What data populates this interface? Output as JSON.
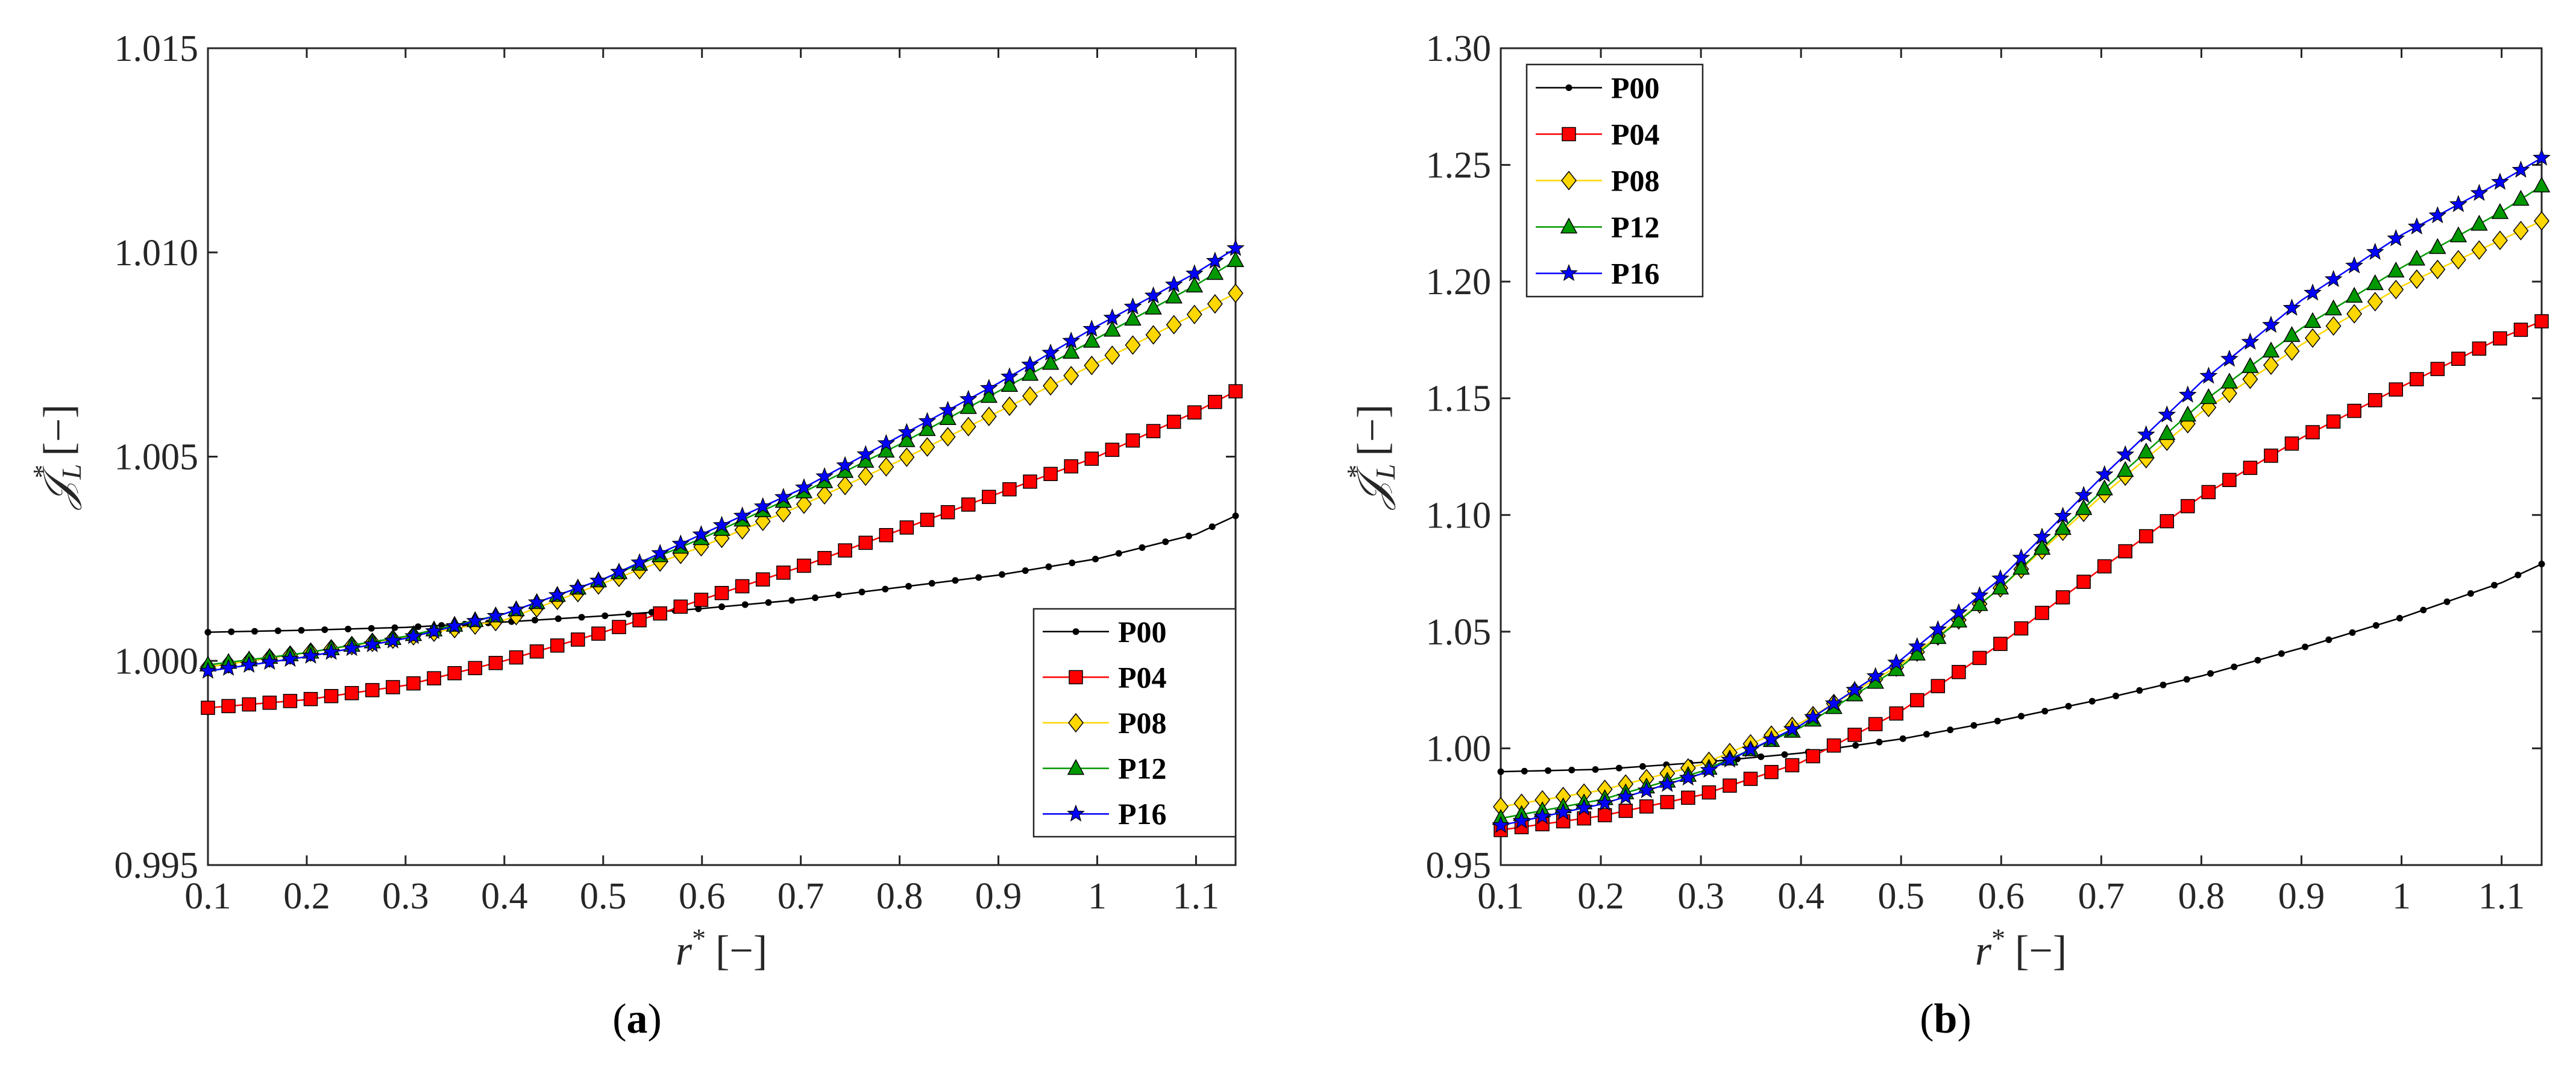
{
  "chart_data": [
    {
      "type": "line",
      "panel": "a",
      "caption_open": "(",
      "caption_letter": "a",
      "caption_close": ")",
      "xlabel_sym": "r",
      "xlabel_sup": "*",
      "xlabel_unit": "[−]",
      "ylabel_sym": "𝒥",
      "ylabel_sup": "*",
      "ylabel_sub": "L",
      "ylabel_unit": "[−]",
      "xlim": [
        0.1,
        1.14
      ],
      "ylim": [
        0.995,
        1.015
      ],
      "xticks": [
        0.1,
        0.2,
        0.3,
        0.4,
        0.5,
        0.6,
        0.7,
        0.8,
        0.9,
        1.0,
        1.1
      ],
      "xtick_labels": [
        "0.1",
        "0.2",
        "0.3",
        "0.4",
        "0.5",
        "0.6",
        "0.7",
        "0.8",
        "0.9",
        "1",
        "1.1"
      ],
      "yticks": [
        0.995,
        1.0,
        1.005,
        1.01,
        1.015
      ],
      "ytick_labels": [
        "0.995",
        "1.000",
        "1.005",
        "1.010",
        "1.015"
      ],
      "legend_position": "bottom-right",
      "series": [
        {
          "name": "P00",
          "color": "#000000",
          "marker": "dot",
          "points": [
            [
              0.1,
              1.0007
            ],
            [
              0.2,
              1.00075
            ],
            [
              0.3,
              1.00082
            ],
            [
              0.4,
              1.00095
            ],
            [
              0.5,
              1.0011
            ],
            [
              0.6,
              1.00128
            ],
            [
              0.7,
              1.0015
            ],
            [
              0.8,
              1.0018
            ],
            [
              0.9,
              1.0021
            ],
            [
              1.0,
              1.0025
            ],
            [
              1.1,
              1.0031
            ],
            [
              1.14,
              1.00355
            ]
          ]
        },
        {
          "name": "P04",
          "color": "#ff0000",
          "marker": "square",
          "points": [
            [
              0.1,
              0.99885
            ],
            [
              0.2,
              0.99905
            ],
            [
              0.3,
              0.9994
            ],
            [
              0.4,
              1.0
            ],
            [
              0.5,
              1.0007
            ],
            [
              0.6,
              1.0015
            ],
            [
              0.7,
              1.0023
            ],
            [
              0.8,
              1.0032
            ],
            [
              0.9,
              1.0041
            ],
            [
              1.0,
              1.005
            ],
            [
              1.1,
              1.0061
            ],
            [
              1.14,
              1.0066
            ]
          ]
        },
        {
          "name": "P08",
          "color": "#ffd700",
          "marker": "diamond",
          "points": [
            [
              0.1,
              0.99985
            ],
            [
              0.2,
              1.0002
            ],
            [
              0.3,
              1.00058
            ],
            [
              0.4,
              1.001
            ],
            [
              0.5,
              1.0019
            ],
            [
              0.6,
              1.0028
            ],
            [
              0.7,
              1.0038
            ],
            [
              0.8,
              1.0049
            ],
            [
              0.9,
              1.0061
            ],
            [
              1.0,
              1.0073
            ],
            [
              1.1,
              1.0085
            ],
            [
              1.14,
              1.009
            ]
          ]
        },
        {
          "name": "P12",
          "color": "#009900",
          "marker": "triangle",
          "points": [
            [
              0.1,
              0.9999
            ],
            [
              0.2,
              1.0002
            ],
            [
              0.3,
              1.0006
            ],
            [
              0.4,
              1.00115
            ],
            [
              0.5,
              1.002
            ],
            [
              0.6,
              1.003
            ],
            [
              0.7,
              1.0041
            ],
            [
              0.8,
              1.0053
            ],
            [
              0.9,
              1.0066
            ],
            [
              1.0,
              1.0079
            ],
            [
              1.1,
              1.0092
            ],
            [
              1.14,
              1.0098
            ]
          ]
        },
        {
          "name": "P16",
          "color": "#0000ff",
          "marker": "star",
          "points": [
            [
              0.1,
              0.99975
            ],
            [
              0.2,
              1.0001
            ],
            [
              0.3,
              1.00055
            ],
            [
              0.4,
              1.00115
            ],
            [
              0.5,
              1.002
            ],
            [
              0.6,
              1.0031
            ],
            [
              0.7,
              1.0042
            ],
            [
              0.8,
              1.0055
            ],
            [
              0.9,
              1.0068
            ],
            [
              1.0,
              1.0082
            ],
            [
              1.1,
              1.0095
            ],
            [
              1.14,
              1.0101
            ]
          ]
        }
      ]
    },
    {
      "type": "line",
      "panel": "b",
      "caption_open": "(",
      "caption_letter": "b",
      "caption_close": ")",
      "xlabel_sym": "r",
      "xlabel_sup": "*",
      "xlabel_unit": "[−]",
      "ylabel_sym": "𝒥",
      "ylabel_sup": "*",
      "ylabel_sub": "L",
      "ylabel_unit": "[−]",
      "xlim": [
        0.1,
        1.14
      ],
      "ylim": [
        0.95,
        1.3
      ],
      "xticks": [
        0.1,
        0.2,
        0.3,
        0.4,
        0.5,
        0.6,
        0.7,
        0.8,
        0.9,
        1.0,
        1.1
      ],
      "xtick_labels": [
        "0.1",
        "0.2",
        "0.3",
        "0.4",
        "0.5",
        "0.6",
        "0.7",
        "0.8",
        "0.9",
        "1",
        "1.1"
      ],
      "yticks": [
        0.95,
        1.0,
        1.05,
        1.1,
        1.15,
        1.2,
        1.25,
        1.3
      ],
      "ytick_labels": [
        "0.95",
        "1.00",
        "1.05",
        "1.10",
        "1.15",
        "1.20",
        "1.25",
        "1.30"
      ],
      "legend_position": "top-left",
      "series": [
        {
          "name": "P00",
          "color": "#000000",
          "marker": "dot",
          "points": [
            [
              0.1,
              0.99
            ],
            [
              0.2,
              0.991
            ],
            [
              0.3,
              0.994
            ],
            [
              0.4,
              0.998
            ],
            [
              0.5,
              1.004
            ],
            [
              0.6,
              1.012
            ],
            [
              0.7,
              1.021
            ],
            [
              0.8,
              1.031
            ],
            [
              0.9,
              1.043
            ],
            [
              1.0,
              1.056
            ],
            [
              1.1,
              1.071
            ],
            [
              1.14,
              1.079
            ]
          ]
        },
        {
          "name": "P04",
          "color": "#ff0000",
          "marker": "square",
          "points": [
            [
              0.1,
              0.965
            ],
            [
              0.2,
              0.971
            ],
            [
              0.3,
              0.98
            ],
            [
              0.4,
              0.994
            ],
            [
              0.5,
              1.016
            ],
            [
              0.6,
              1.045
            ],
            [
              0.7,
              1.077
            ],
            [
              0.8,
              1.108
            ],
            [
              0.9,
              1.133
            ],
            [
              1.0,
              1.155
            ],
            [
              1.1,
              1.176
            ],
            [
              1.14,
              1.183
            ]
          ]
        },
        {
          "name": "P08",
          "color": "#ffd700",
          "marker": "diamond",
          "points": [
            [
              0.1,
              0.975
            ],
            [
              0.2,
              0.982
            ],
            [
              0.3,
              0.993
            ],
            [
              0.4,
              1.011
            ],
            [
              0.5,
              1.036
            ],
            [
              0.6,
              1.069
            ],
            [
              0.7,
              1.108
            ],
            [
              0.8,
              1.144
            ],
            [
              0.9,
              1.173
            ],
            [
              1.0,
              1.198
            ],
            [
              1.1,
              1.218
            ],
            [
              1.14,
              1.226
            ]
          ]
        },
        {
          "name": "P12",
          "color": "#009900",
          "marker": "triangle",
          "points": [
            [
              0.1,
              0.97
            ],
            [
              0.2,
              0.978
            ],
            [
              0.3,
              0.99
            ],
            [
              0.4,
              1.009
            ],
            [
              0.5,
              1.035
            ],
            [
              0.6,
              1.069
            ],
            [
              0.7,
              1.11
            ],
            [
              0.8,
              1.148
            ],
            [
              0.9,
              1.18
            ],
            [
              1.0,
              1.206
            ],
            [
              1.1,
              1.23
            ],
            [
              1.14,
              1.241
            ]
          ]
        },
        {
          "name": "P16",
          "color": "#0000ff",
          "marker": "star",
          "points": [
            [
              0.1,
              0.967
            ],
            [
              0.2,
              0.976
            ],
            [
              0.3,
              0.989
            ],
            [
              0.4,
              1.01
            ],
            [
              0.5,
              1.038
            ],
            [
              0.6,
              1.073
            ],
            [
              0.7,
              1.116
            ],
            [
              0.8,
              1.157
            ],
            [
              0.9,
              1.192
            ],
            [
              1.0,
              1.22
            ],
            [
              1.1,
              1.243
            ],
            [
              1.14,
              1.253
            ]
          ]
        }
      ]
    }
  ]
}
